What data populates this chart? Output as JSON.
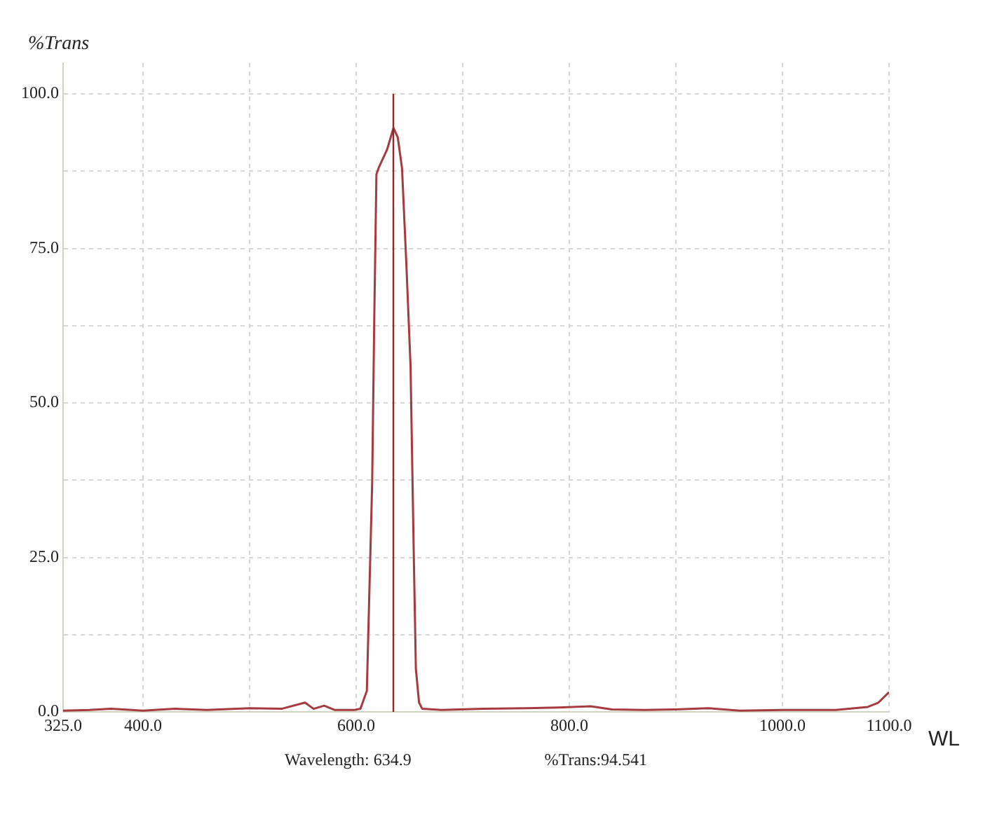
{
  "chart_data": {
    "type": "line",
    "xlabel": "WL",
    "ylabel": "%Trans",
    "x": [
      325,
      350,
      370,
      400,
      430,
      460,
      500,
      530,
      552,
      560,
      570,
      580,
      598,
      604,
      610,
      615,
      617,
      619,
      621,
      629,
      635,
      639,
      643,
      647,
      651,
      654,
      656,
      659,
      662,
      680,
      720,
      760,
      790,
      820,
      840,
      870,
      900,
      930,
      960,
      1000,
      1050,
      1080,
      1090,
      1100
    ],
    "series": [
      {
        "color": "#a63a3f",
        "values": [
          0.2,
          0.3,
          0.5,
          0.2,
          0.5,
          0.3,
          0.6,
          0.5,
          1.5,
          0.5,
          1.0,
          0.3,
          0.3,
          0.5,
          3.4,
          37,
          64,
          87,
          88,
          91,
          94.5,
          93,
          88,
          72.8,
          56,
          26,
          7,
          1.5,
          0.5,
          0.3,
          0.5,
          0.6,
          0.7,
          0.9,
          0.4,
          0.3,
          0.4,
          0.6,
          0.2,
          0.3,
          0.3,
          0.8,
          1.5,
          3.2
        ]
      }
    ],
    "xlim": [
      325,
      1100
    ],
    "ylim": [
      0,
      105
    ],
    "xticks": [
      {
        "value": 325,
        "label": "325.0"
      },
      {
        "value": 400,
        "label": "400.0"
      },
      {
        "value": 500,
        "label": null
      },
      {
        "value": 600,
        "label": "600.0"
      },
      {
        "value": 700,
        "label": null
      },
      {
        "value": 800,
        "label": "800.0"
      },
      {
        "value": 900,
        "label": null
      },
      {
        "value": 1000,
        "label": "1000.0"
      },
      {
        "value": 1100,
        "label": "1100.0"
      }
    ],
    "yticks": [
      {
        "value": 0,
        "label": "0.0"
      },
      {
        "value": 12.5,
        "label": null
      },
      {
        "value": 25,
        "label": "25.0"
      },
      {
        "value": 37.5,
        "label": null
      },
      {
        "value": 50,
        "label": "50.0"
      },
      {
        "value": 62.5,
        "label": null
      },
      {
        "value": 75,
        "label": "75.0"
      },
      {
        "value": 87.5,
        "label": null
      },
      {
        "value": 100,
        "label": "100.0"
      }
    ],
    "grid": true,
    "marker": "none",
    "line_style": "solid",
    "ref_lines": [
      {
        "axis": "x",
        "value": 634.9,
        "color": "#8b2a2a"
      }
    ],
    "annotations": [
      "Wavelength: 634.9",
      "%Trans:94.541"
    ]
  }
}
